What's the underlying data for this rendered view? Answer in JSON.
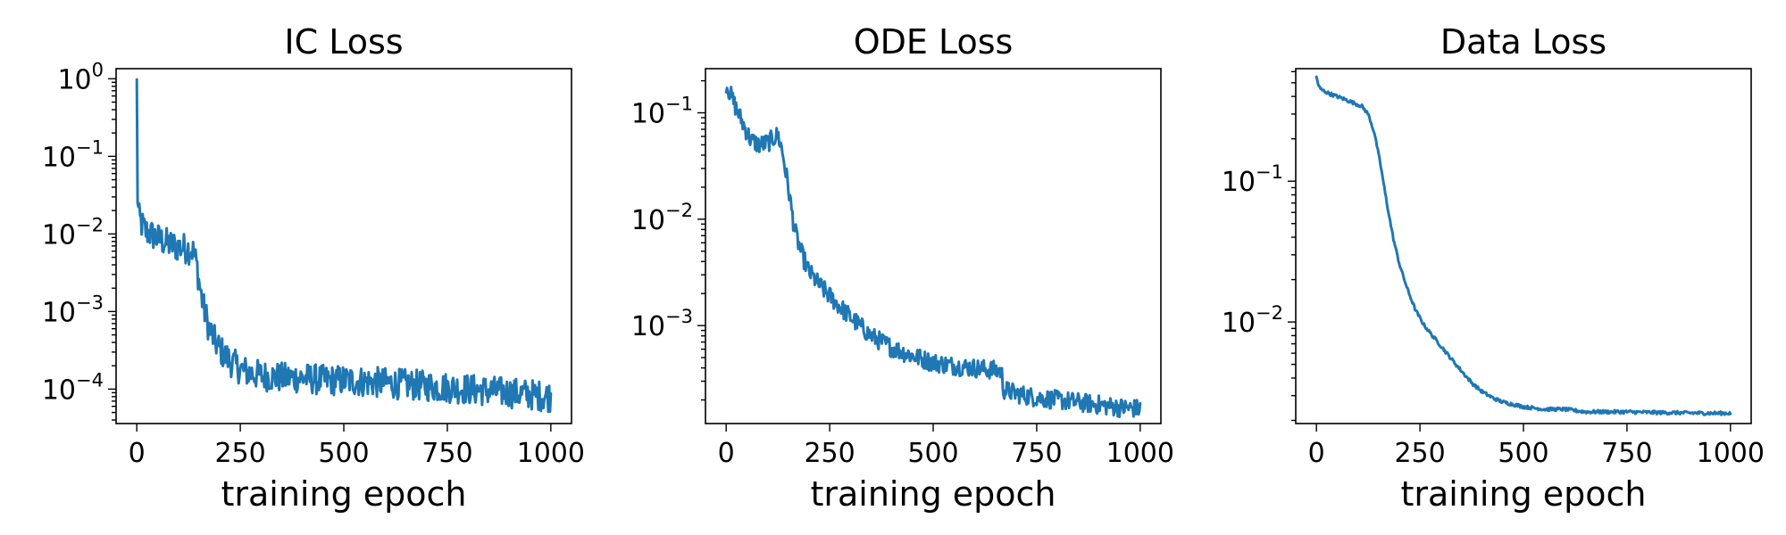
{
  "chart_data": [
    {
      "type": "line",
      "title": "IC Loss",
      "xlabel": "training epoch",
      "ylabel": "",
      "xlim": [
        -50,
        1050
      ],
      "ylim": [
        3.6e-05,
        1.35
      ],
      "yscale": "log",
      "xticks": [
        0,
        250,
        500,
        750,
        1000
      ],
      "xtick_labels": [
        "0",
        "250",
        "500",
        "750",
        "1000"
      ],
      "yticks": [
        0.0001,
        0.001,
        0.01,
        0.1,
        1
      ],
      "ytick_labels": [
        {
          "base": "10",
          "exp": "−4"
        },
        {
          "base": "10",
          "exp": "−3"
        },
        {
          "base": "10",
          "exp": "−2"
        },
        {
          "base": "10",
          "exp": "−1"
        },
        {
          "base": "10",
          "exp": "0"
        }
      ],
      "grid": false,
      "color": "#1f77b4",
      "series": [
        {
          "x": [
            0,
            2,
            5,
            10,
            20,
            40,
            60,
            80,
            100,
            120,
            135,
            145,
            150,
            160,
            175,
            190,
            210,
            230,
            250,
            275,
            300,
            350,
            400,
            450,
            500,
            550,
            600,
            650,
            700,
            750,
            800,
            850,
            900,
            950,
            1000
          ],
          "y": [
            0.85,
            0.03,
            0.016,
            0.014,
            0.011,
            0.0095,
            0.0082,
            0.0073,
            0.0068,
            0.0065,
            0.0062,
            0.004,
            0.0025,
            0.0012,
            0.0006,
            0.0004,
            0.00028,
            0.00022,
            0.00018,
            0.00016,
            0.00015,
            0.00014,
            0.00014,
            0.00013,
            0.00013,
            0.000125,
            0.00012,
            0.000115,
            0.00011,
            0.000105,
            0.0001,
            9.5e-05,
            9e-05,
            8.5e-05,
            8e-05
          ],
          "noise": 0.2
        }
      ]
    },
    {
      "type": "line",
      "title": "ODE Loss",
      "xlabel": "training epoch",
      "ylabel": "",
      "xlim": [
        -50,
        1050
      ],
      "ylim": [
        0.00012,
        0.26
      ],
      "yscale": "log",
      "xticks": [
        0,
        250,
        500,
        750,
        1000
      ],
      "xtick_labels": [
        "0",
        "250",
        "500",
        "750",
        "1000"
      ],
      "yticks": [
        0.001,
        0.01,
        0.1
      ],
      "ytick_labels": [
        {
          "base": "10",
          "exp": "−3"
        },
        {
          "base": "10",
          "exp": "−2"
        },
        {
          "base": "10",
          "exp": "−1"
        }
      ],
      "grid": false,
      "color": "#1f77b4",
      "series": [
        {
          "x": [
            0,
            10,
            20,
            40,
            60,
            80,
            100,
            115,
            125,
            135,
            150,
            165,
            180,
            200,
            225,
            250,
            275,
            300,
            350,
            400,
            450,
            500,
            550,
            600,
            650,
            665,
            670,
            700,
            750,
            800,
            850,
            900,
            950,
            1000
          ],
          "y": [
            0.19,
            0.15,
            0.12,
            0.08,
            0.055,
            0.05,
            0.052,
            0.058,
            0.062,
            0.045,
            0.02,
            0.008,
            0.005,
            0.0032,
            0.0024,
            0.0019,
            0.0015,
            0.0012,
            0.0008,
            0.00062,
            0.00052,
            0.00045,
            0.00042,
            0.0004,
            0.00038,
            0.00037,
            0.00025,
            0.00023,
            0.00021,
            0.0002,
            0.00019,
            0.00018,
            0.00017,
            0.000165
          ],
          "noise": 0.09
        }
      ]
    },
    {
      "type": "line",
      "title": "Data Loss",
      "xlabel": "training epoch",
      "ylabel": "",
      "xlim": [
        -50,
        1050
      ],
      "ylim": [
        0.0019,
        0.63
      ],
      "yscale": "log",
      "xticks": [
        0,
        250,
        500,
        750,
        1000
      ],
      "xtick_labels": [
        "0",
        "250",
        "500",
        "750",
        "1000"
      ],
      "yticks": [
        0.01,
        0.1
      ],
      "ytick_labels": [
        {
          "base": "10",
          "exp": "−2"
        },
        {
          "base": "10",
          "exp": "−1"
        }
      ],
      "grid": false,
      "color": "#1f77b4",
      "series": [
        {
          "x": [
            0,
            5,
            10,
            30,
            60,
            90,
            110,
            125,
            140,
            155,
            170,
            185,
            200,
            220,
            240,
            260,
            280,
            300,
            325,
            350,
            375,
            400,
            425,
            450,
            475,
            500,
            550,
            600,
            650,
            700,
            750,
            800,
            850,
            900,
            950,
            1000
          ],
          "y": [
            0.55,
            0.48,
            0.45,
            0.42,
            0.39,
            0.36,
            0.34,
            0.3,
            0.22,
            0.13,
            0.07,
            0.04,
            0.026,
            0.017,
            0.012,
            0.0095,
            0.008,
            0.0068,
            0.0055,
            0.0045,
            0.0037,
            0.0032,
            0.0029,
            0.0027,
            0.0026,
            0.0025,
            0.0024,
            0.0024,
            0.0023,
            0.0023,
            0.0023,
            0.00228,
            0.00227,
            0.00226,
            0.00225,
            0.00225
          ],
          "noise": 0.012
        }
      ]
    }
  ]
}
